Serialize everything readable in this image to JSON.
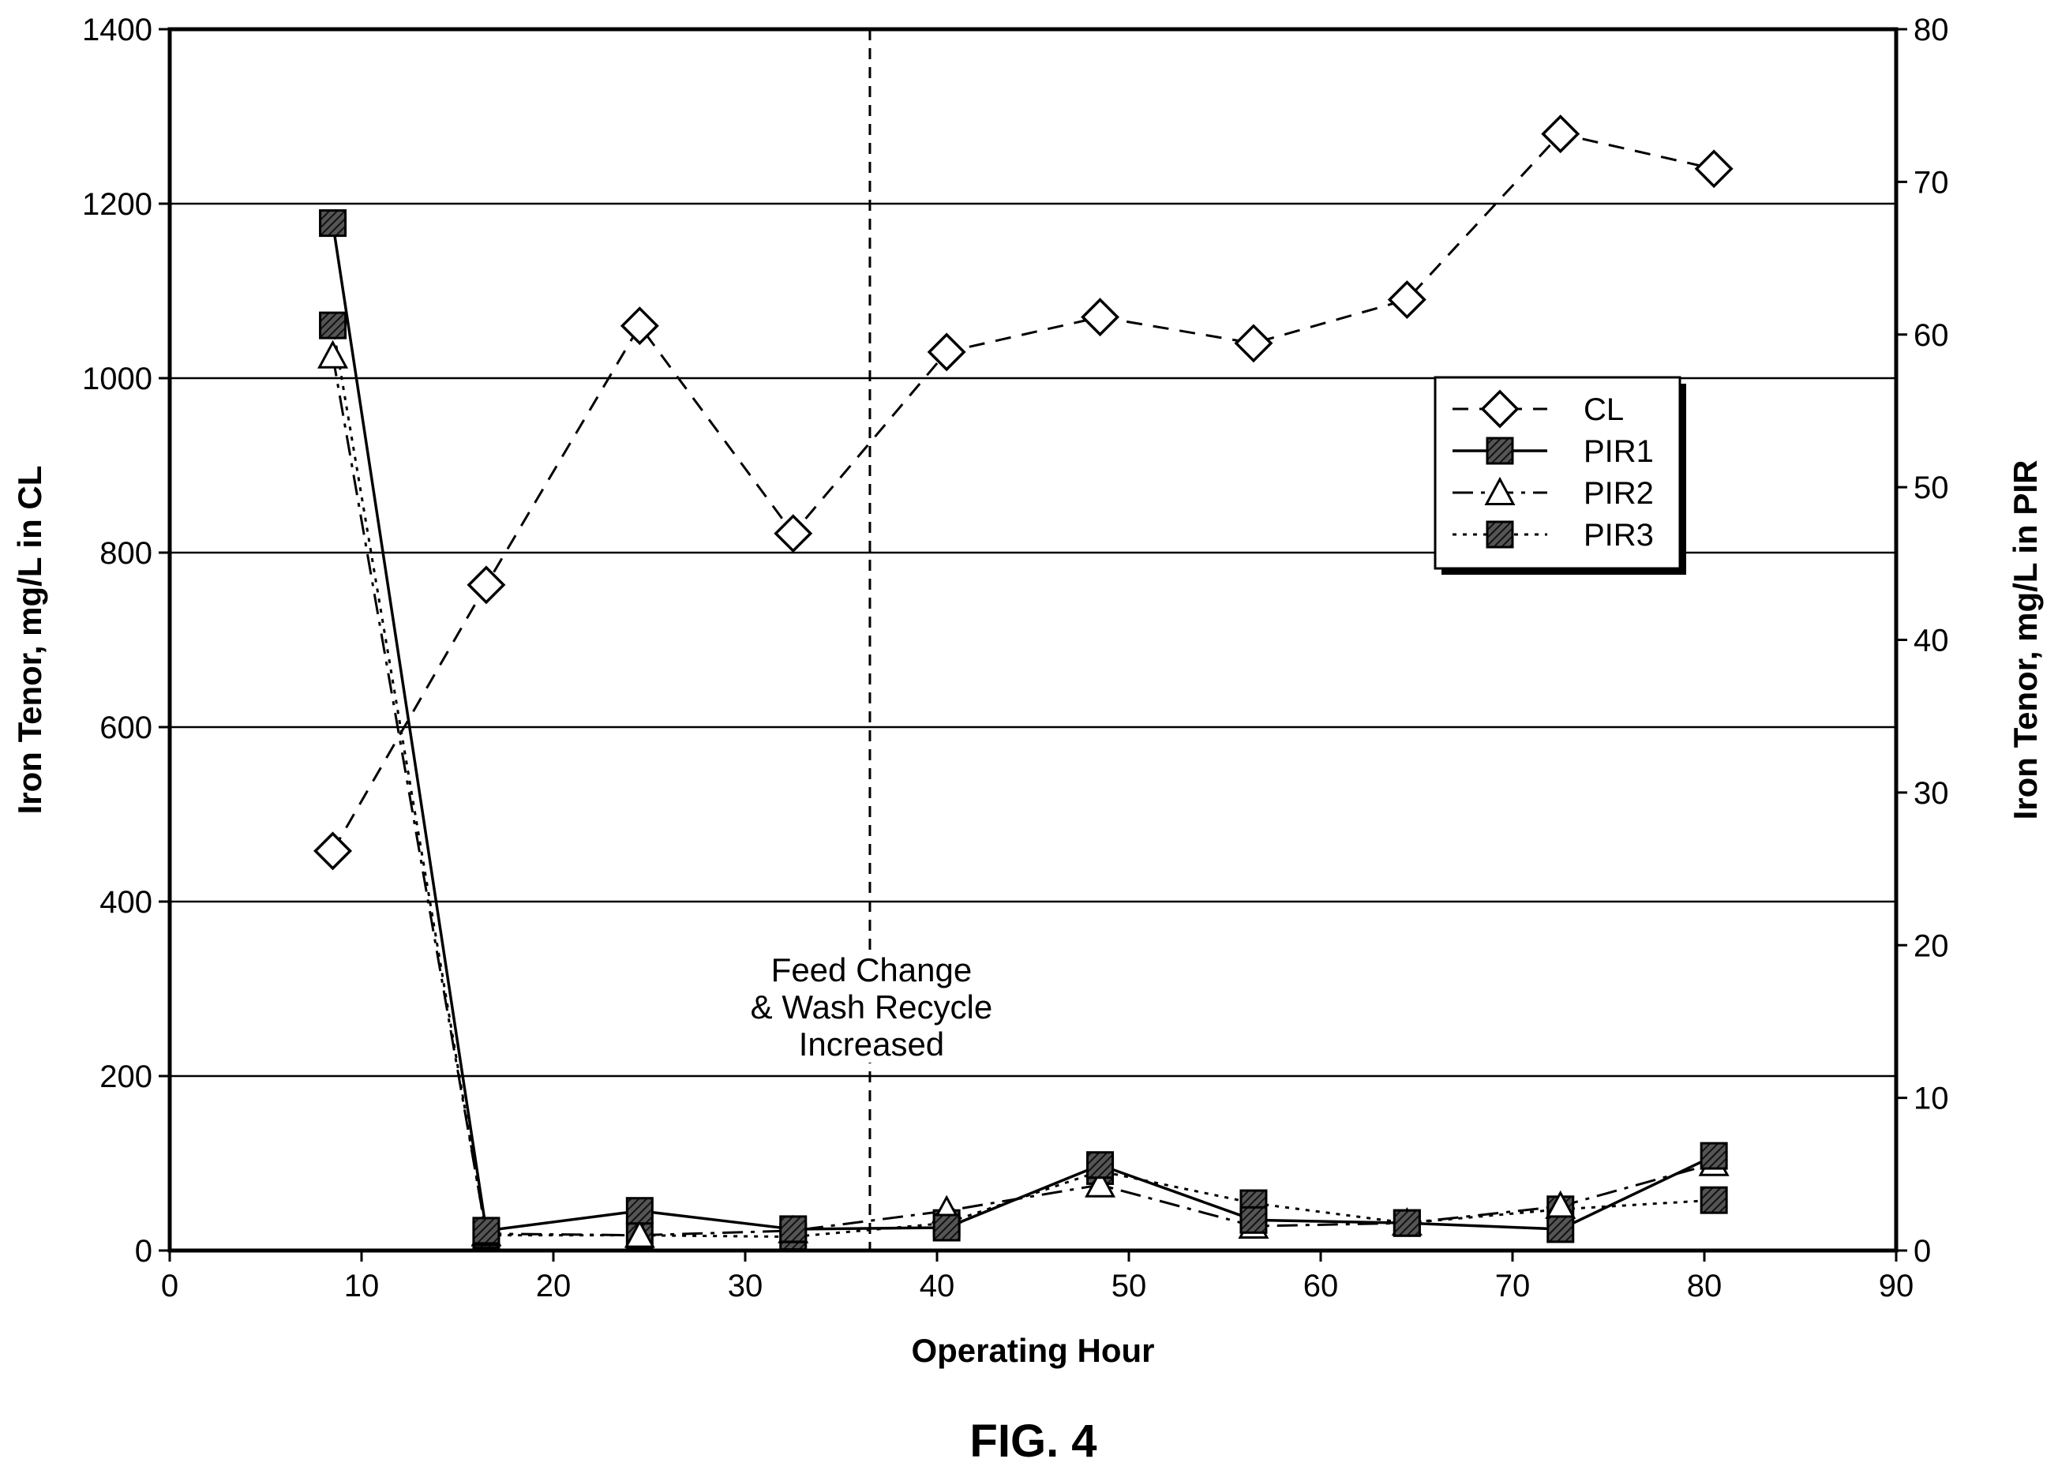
{
  "chart_data": {
    "type": "line",
    "figure_label": "FIG. 4",
    "xlabel": "Operating Hour",
    "ylabel_left": "Iron Tenor, mg/L in CL",
    "ylabel_right": "Iron Tenor, mg/L in PIR",
    "xlim": [
      0,
      90
    ],
    "ylim_left": [
      0,
      1400
    ],
    "ylim_right": [
      0,
      80
    ],
    "x_ticks": [
      "0",
      "10",
      "20",
      "30",
      "40",
      "50",
      "60",
      "70",
      "80",
      "90"
    ],
    "y_left_ticks": [
      "0",
      "200",
      "400",
      "600",
      "800",
      "1000",
      "1200",
      "1400"
    ],
    "y_right_ticks": [
      "0",
      "10",
      "20",
      "30",
      "40",
      "50",
      "60",
      "70",
      "80"
    ],
    "grid": "horizontal",
    "legend_position": "right",
    "annotation": {
      "x": 36.5,
      "lines": [
        "Feed Change",
        "& Wash Recycle",
        "Increased"
      ]
    },
    "series": [
      {
        "name": "CL",
        "axis": "left",
        "marker": "diamond",
        "line": "dashed",
        "points": [
          [
            8.5,
            458
          ],
          [
            16.5,
            763
          ],
          [
            24.5,
            1060
          ],
          [
            32.5,
            822
          ],
          [
            40.5,
            1030
          ],
          [
            48.5,
            1070
          ],
          [
            56.5,
            1040
          ],
          [
            64.5,
            1090
          ],
          [
            72.5,
            1280
          ],
          [
            80.5,
            1240
          ]
        ]
      },
      {
        "name": "PIR1",
        "axis": "right",
        "marker": "square-hatched",
        "line": "solid",
        "points": [
          [
            8.5,
            67.3
          ],
          [
            16.5,
            1.3
          ],
          [
            24.5,
            2.6
          ],
          [
            32.5,
            1.4
          ],
          [
            40.5,
            1.5
          ],
          [
            48.5,
            5.6
          ],
          [
            56.5,
            2.0
          ],
          [
            64.5,
            1.8
          ],
          [
            72.5,
            1.4
          ],
          [
            80.5,
            6.2
          ]
        ]
      },
      {
        "name": "PIR2",
        "axis": "right",
        "marker": "triangle",
        "line": "dash-dot",
        "points": [
          [
            8.5,
            58.6
          ],
          [
            16.5,
            1.1
          ],
          [
            24.5,
            1.0
          ],
          [
            32.5,
            1.3
          ],
          [
            40.5,
            2.6
          ],
          [
            48.5,
            4.3
          ],
          [
            56.5,
            1.6
          ],
          [
            64.5,
            1.8
          ],
          [
            72.5,
            2.9
          ],
          [
            80.5,
            5.7
          ]
        ]
      },
      {
        "name": "PIR3",
        "axis": "right",
        "marker": "square-hatched",
        "line": "dotted",
        "points": [
          [
            8.5,
            60.6
          ],
          [
            16.5,
            1.0
          ],
          [
            24.5,
            1.0
          ],
          [
            32.5,
            0.9
          ],
          [
            40.5,
            1.8
          ],
          [
            48.5,
            5.2
          ],
          [
            56.5,
            3.1
          ],
          [
            64.5,
            1.8
          ],
          [
            72.5,
            2.7
          ],
          [
            80.5,
            3.3
          ]
        ]
      }
    ]
  }
}
